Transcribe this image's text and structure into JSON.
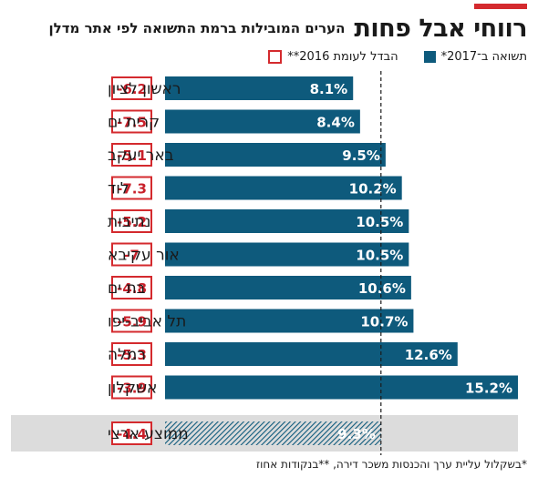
{
  "title": "רווחי אבל פחות",
  "subtitle": "הערים המובילות ברמת התשואה לפי אתר מדלן",
  "legend": {
    "yield_label": "תשואה ב־2017*",
    "diff_label": "הבדל לעומת 2016**"
  },
  "footnote": "*בשקלול עליית ערך והכנסות משכר דירה, **בנקודות אחוז",
  "colors": {
    "bar": "#0e5a7c",
    "diff_border": "#d42a2e",
    "diff_text": "#c8202a",
    "accent": "#d42a2e",
    "average_bg": "#dcdcdc"
  },
  "chart_data": {
    "type": "bar",
    "orientation": "horizontal",
    "categories": [
      "ראשון לציון",
      "קרית ים",
      "באר יעקב",
      "לוד",
      "נתיבות",
      "אור עקיבא",
      "בת ים",
      "תל אביב-יפו",
      "רמלה",
      "אשקלון"
    ],
    "series": [
      {
        "name": "תשואה ב־2017*",
        "values": [
          8.1,
          8.4,
          9.5,
          10.2,
          10.5,
          10.5,
          10.6,
          10.7,
          12.6,
          15.2
        ],
        "labels": [
          "8.1%",
          "8.4%",
          "9.5%",
          "10.2%",
          "10.5%",
          "10.5%",
          "10.6%",
          "10.7%",
          "12.6%",
          "15.2%"
        ]
      },
      {
        "name": "הבדל לעומת 2016**",
        "values": [
          -6.2,
          -7.5,
          -5.1,
          -7.3,
          -5.2,
          -7,
          -4.8,
          -5.9,
          -5.3,
          -3.9
        ],
        "labels": [
          "-6.2",
          "-7.5",
          "-5.1",
          "-7.3",
          "-5.2",
          "-7",
          "-4.8",
          "-5.9",
          "-5.3",
          "-3.9"
        ]
      }
    ],
    "average": {
      "category": "ממוצע ארצי",
      "value": 9.3,
      "label": "9.3%",
      "diff": -4.4,
      "diff_label": "-4.4"
    },
    "reference_line": 9.3,
    "xlim": [
      0,
      15.2
    ],
    "grid": false
  }
}
